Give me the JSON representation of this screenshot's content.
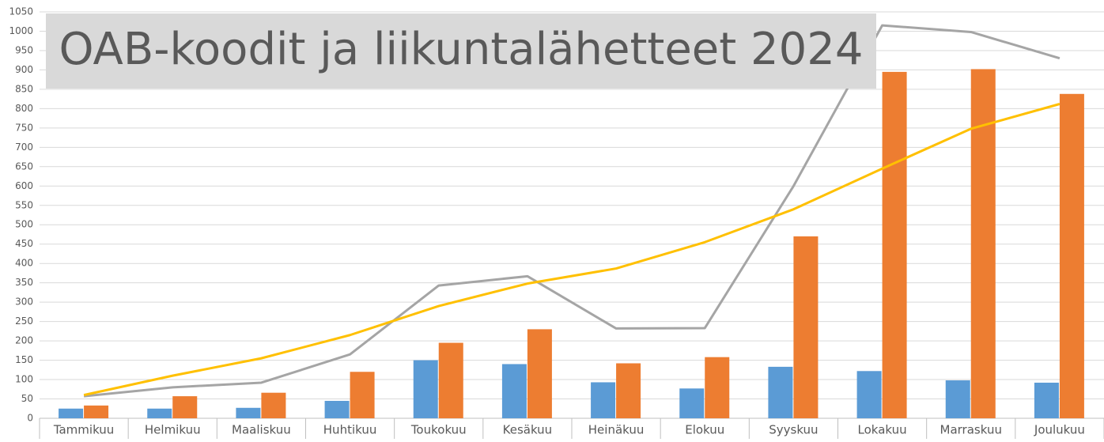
{
  "chart_data": {
    "type": "bar",
    "title": "OAB-koodit ja liikuntalähetteet 2024",
    "categories": [
      "Tammikuu",
      "Helmikuu",
      "Maaliskuu",
      "Huhtikuu",
      "Toukokuu",
      "Kesäkuu",
      "Heinäkuu",
      "Elokuu",
      "Syyskuu",
      "Lokakuu",
      "Marraskuu",
      "Joulukuu"
    ],
    "series": [
      {
        "type": "bar",
        "color": "#5b9bd5",
        "values": [
          25,
          25,
          27,
          45,
          150,
          140,
          93,
          77,
          133,
          122,
          98,
          92
        ]
      },
      {
        "type": "bar",
        "color": "#ed7d31",
        "values": [
          33,
          57,
          66,
          120,
          195,
          230,
          142,
          158,
          470,
          895,
          902,
          838
        ]
      },
      {
        "type": "line",
        "color": "#a5a5a5",
        "values": [
          57,
          80,
          92,
          165,
          343,
          367,
          232,
          233,
          600,
          1015,
          998,
          930
        ]
      },
      {
        "type": "line",
        "color": "#ffc000",
        "values": [
          60,
          110,
          155,
          215,
          290,
          348,
          387,
          455,
          540,
          645,
          748,
          812
        ]
      }
    ],
    "ylim": [
      0,
      1050
    ],
    "yticks": [
      0,
      50,
      100,
      150,
      200,
      250,
      300,
      350,
      400,
      450,
      500,
      550,
      600,
      650,
      700,
      750,
      800,
      850,
      900,
      950,
      1000,
      1050
    ],
    "grid": true
  }
}
